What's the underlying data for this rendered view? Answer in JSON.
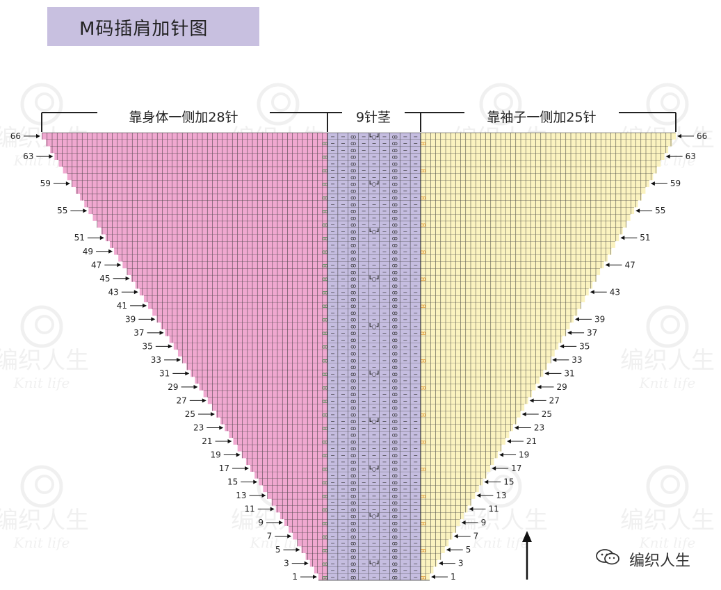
{
  "title": "M码插肩加针图",
  "sections": {
    "left_label": "靠身体一侧加28针",
    "middle_label": "9针茎",
    "right_label": "靠袖子一侧加25针"
  },
  "colors": {
    "left_fill": "#f0a8d0",
    "middle_fill": "#c5bde0",
    "right_fill": "#fbf3c0",
    "grid_line": "#333333",
    "increase_left": "#2a8a3a",
    "increase_right": "#e08a1a"
  },
  "grid": {
    "total_rows": 66,
    "stem_columns": 9,
    "body_increase": 28,
    "sleeve_increase": 25
  },
  "left_row_labels": [
    "66",
    "63",
    "59",
    "55",
    "51",
    "49",
    "47",
    "45",
    "43",
    "41",
    "39",
    "37",
    "35",
    "33",
    "31",
    "29",
    "27",
    "25",
    "23",
    "21",
    "19",
    "17",
    "15",
    "13",
    "11",
    "9",
    "7",
    "5",
    "3",
    "1"
  ],
  "right_row_labels": [
    "66",
    "63",
    "59",
    "55",
    "51",
    "47",
    "43",
    "39",
    "37",
    "35",
    "33",
    "31",
    "29",
    "27",
    "25",
    "23",
    "21",
    "19",
    "17",
    "15",
    "13",
    "11",
    "9",
    "7",
    "5",
    "3",
    "1"
  ],
  "stem_symbols": [
    "−",
    "−",
    "ꝏ",
    "−",
    "┗○┛",
    "−",
    "ꝏ",
    "−",
    "−"
  ],
  "brand": {
    "icon": "wechat-icon",
    "text": "编织人生"
  },
  "watermark": {
    "text": "编织人生",
    "sub": "Knit life"
  }
}
